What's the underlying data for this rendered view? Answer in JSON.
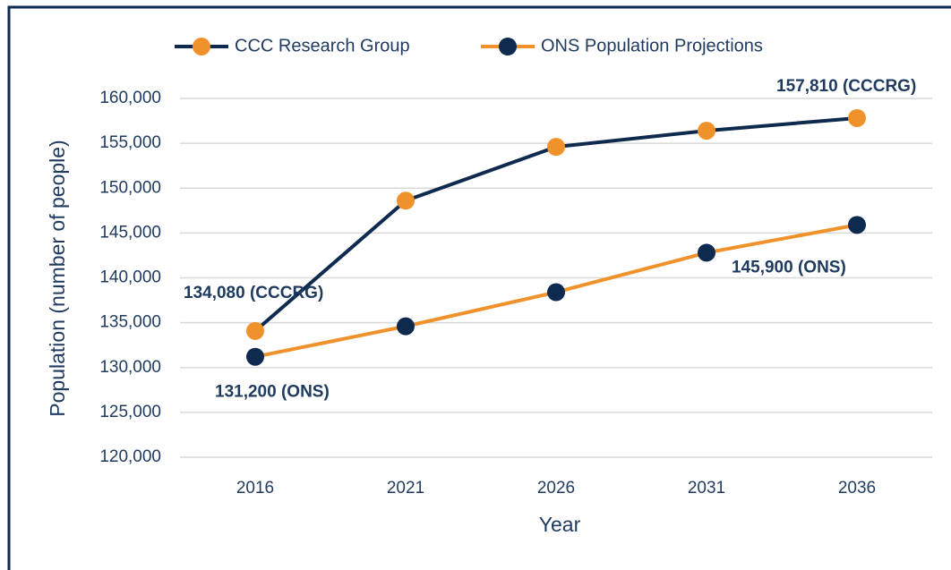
{
  "chart_data": {
    "type": "line",
    "categories": [
      "2016",
      "2021",
      "2026",
      "2031",
      "2036"
    ],
    "series": [
      {
        "name": "CCC Research  Group",
        "color": "#0e2a4f",
        "marker_color": "#f0922b",
        "values": [
          134080,
          148600,
          154600,
          156400,
          157810
        ],
        "value_labels": [
          "134,080 (CCCRG)",
          null,
          null,
          null,
          "157,810 (CCCRG)"
        ]
      },
      {
        "name": "ONS Population Projections",
        "color": "#f0922b",
        "marker_color": "#0e2a4f",
        "values": [
          131200,
          134600,
          138400,
          142800,
          145900
        ],
        "value_labels": [
          "131,200 (ONS)",
          null,
          null,
          null,
          "145,900 (ONS)"
        ]
      }
    ],
    "ylim": [
      120000,
      160000
    ],
    "yticks": [
      {
        "value": 120000,
        "label": "120,000"
      },
      {
        "value": 125000,
        "label": "125,000"
      },
      {
        "value": 130000,
        "label": "130,000"
      },
      {
        "value": 135000,
        "label": "135,000"
      },
      {
        "value": 140000,
        "label": "140,000"
      },
      {
        "value": 145000,
        "label": "145,000"
      },
      {
        "value": 150000,
        "label": "150,000"
      },
      {
        "value": 155000,
        "label": "155,000"
      },
      {
        "value": 160000,
        "label": "160,000"
      }
    ],
    "ylabel": "Population (number of people)",
    "xlabel": "Year",
    "grid": true,
    "legend": "top"
  }
}
